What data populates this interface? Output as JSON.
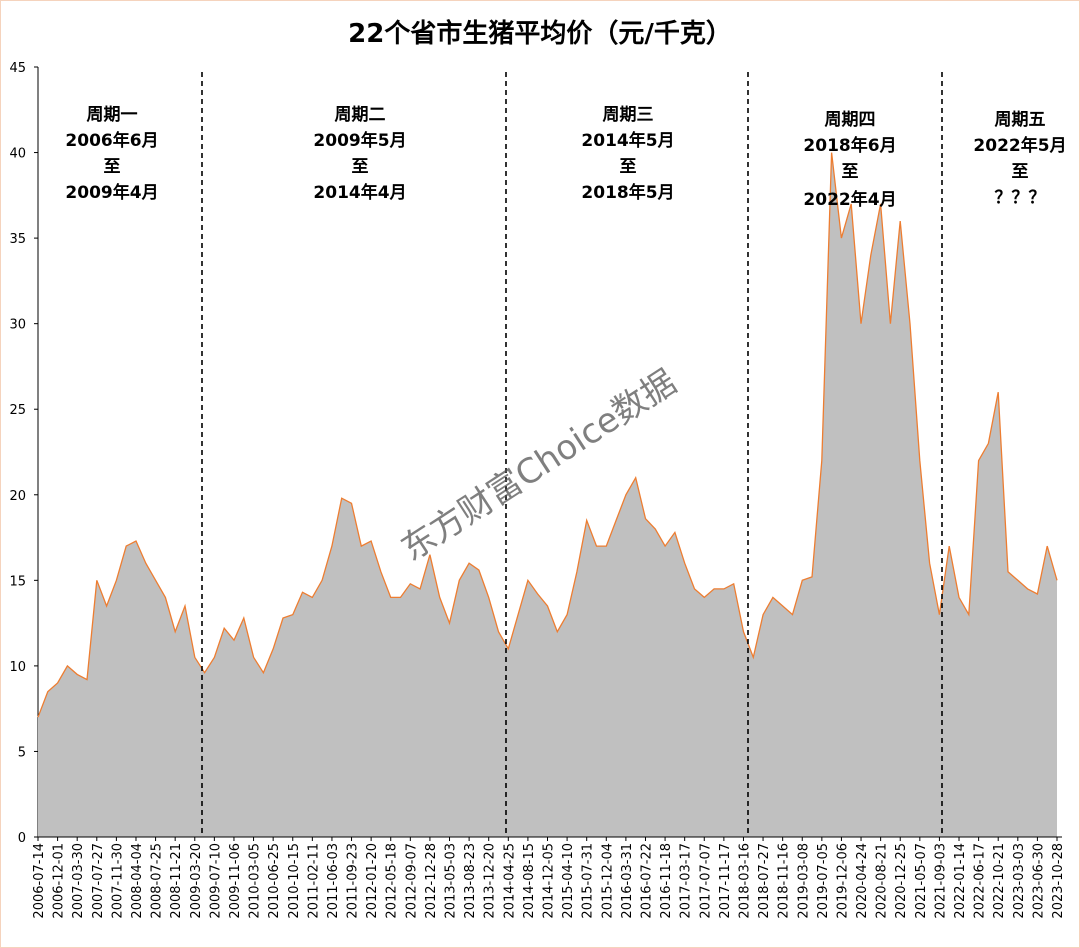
{
  "chart_data": {
    "type": "area",
    "title": "22个省市生猪平均价（元/千克）",
    "watermark": "东方财富Choice数据",
    "categories": [
      "2006-07-14",
      null,
      "2006-12-01",
      null,
      "2007-03-30",
      null,
      "2007-07-27",
      null,
      "2007-11-30",
      null,
      "2008-04-04",
      null,
      "2008-07-25",
      null,
      "2008-11-21",
      null,
      "2009-03-20",
      null,
      "2009-07-10",
      null,
      "2009-11-06",
      null,
      "2010-03-05",
      null,
      "2010-06-25",
      null,
      "2010-10-15",
      null,
      "2011-02-11",
      null,
      "2011-06-03",
      null,
      "2011-09-23",
      null,
      "2012-01-20",
      null,
      "2012-05-18",
      null,
      "2012-09-07",
      null,
      "2012-12-28",
      null,
      "2013-05-03",
      null,
      "2013-08-23",
      null,
      "2013-12-20",
      null,
      "2014-04-25",
      null,
      "2014-08-15",
      null,
      "2014-12-05",
      null,
      "2015-04-10",
      null,
      "2015-07-31",
      null,
      "2015-12-04",
      null,
      "2016-03-31",
      null,
      "2016-07-22",
      null,
      "2016-11-18",
      null,
      "2017-03-17",
      null,
      "2017-07-07",
      null,
      "2017-11-17",
      null,
      "2018-03-16",
      null,
      "2018-07-27",
      null,
      "2018-11-16",
      null,
      "2019-03-08",
      null,
      "2019-07-05",
      null,
      "2019-12-06",
      null,
      "2020-04-24",
      null,
      "2020-08-21",
      null,
      "2020-12-25",
      null,
      "2021-05-07",
      null,
      "2021-09-03",
      null,
      "2022-01-14",
      null,
      "2022-06-17",
      null,
      "2022-10-21",
      null,
      "2023-03-03",
      null,
      "2023-06-30",
      null,
      "2023-10-28"
    ],
    "values": [
      7,
      8.5,
      9,
      10,
      9.5,
      9.2,
      15,
      13.5,
      15,
      17,
      17.3,
      16,
      15,
      14,
      12,
      13.5,
      10.5,
      9.6,
      10.5,
      12.2,
      11.5,
      12.8,
      10.5,
      9.6,
      11,
      12.8,
      13,
      14.3,
      14,
      15,
      17,
      19.8,
      19.5,
      17,
      17.3,
      15.5,
      14,
      14,
      14.8,
      14.5,
      16.5,
      14,
      12.5,
      15,
      16,
      15.6,
      14,
      12,
      11,
      13,
      15,
      14.2,
      13.5,
      12,
      13,
      15.5,
      18.5,
      17,
      17,
      18.5,
      20,
      21,
      18.6,
      18,
      17,
      17.8,
      16,
      14.5,
      14,
      14.5,
      14.5,
      14.8,
      12,
      10.5,
      13,
      14,
      13.5,
      13,
      15,
      15.2,
      22,
      40,
      35,
      37,
      30,
      34,
      37,
      30,
      36,
      30,
      22,
      16,
      13,
      17,
      14,
      13,
      22,
      23,
      26,
      15.5,
      15,
      14.5,
      14.2,
      17,
      15
    ],
    "fill": "#c0c0c0",
    "line_color": "#ed7d31",
    "ylim": [
      0,
      45
    ],
    "yticks": [
      0,
      5,
      10,
      15,
      20,
      25,
      30,
      35,
      40,
      45
    ],
    "annotations": [
      [
        "周期一",
        "2006年6月",
        "至",
        "2009年4月"
      ],
      [
        "周期二",
        "2009年5月",
        "至",
        "2014年4月"
      ],
      [
        "周期三",
        "2014年5月",
        "至",
        "2018年5月"
      ],
      [
        "周期四",
        "2018年6月",
        "至",
        "2022年4月"
      ],
      [
        "周期五",
        "2022年5月",
        "至",
        "？？？"
      ]
    ]
  }
}
